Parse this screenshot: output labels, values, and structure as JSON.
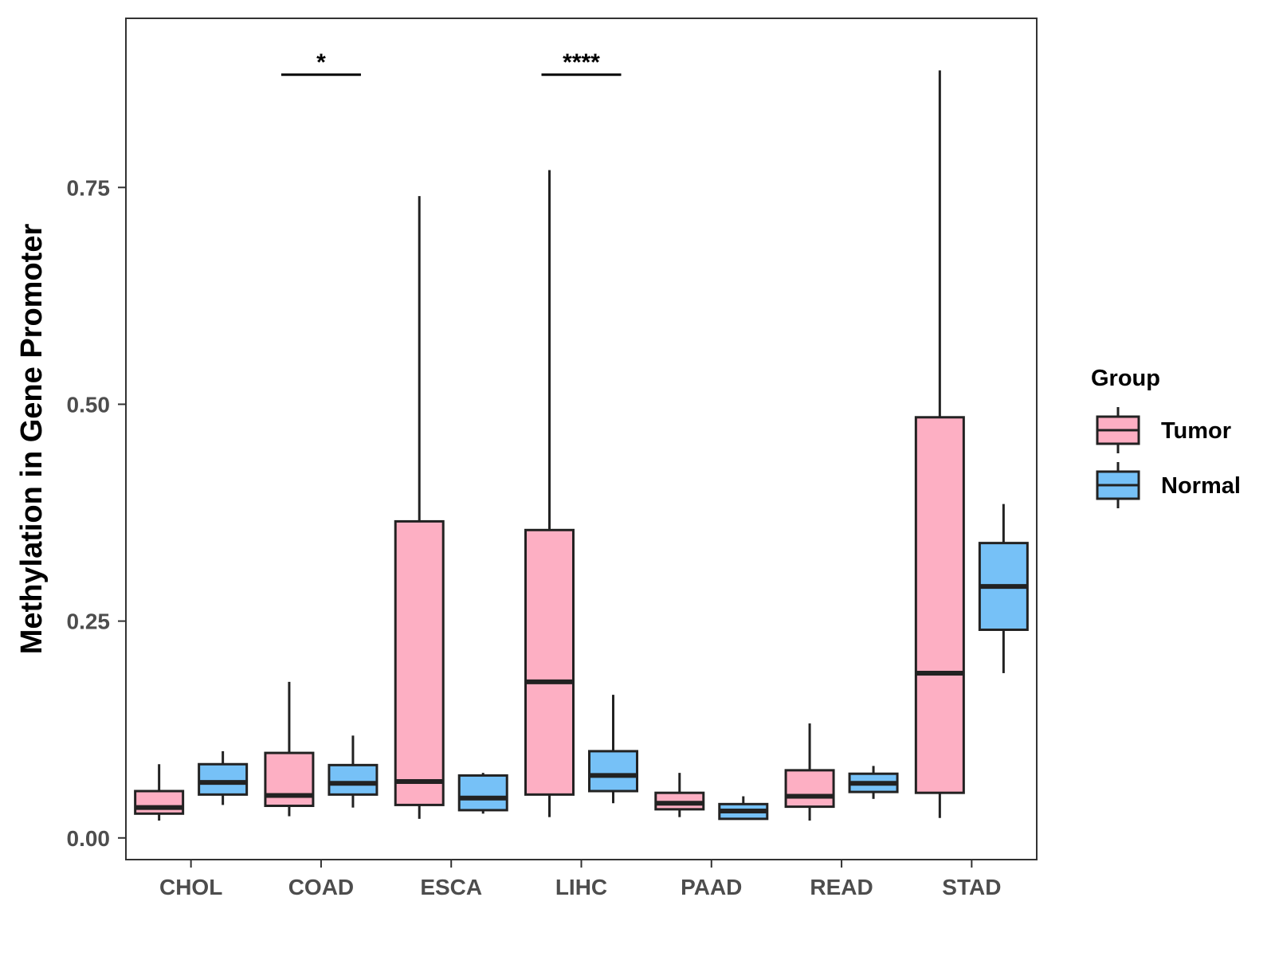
{
  "chart_data": {
    "type": "boxplot",
    "title": "",
    "xlabel": "",
    "ylabel": "Methylation in Gene Promoter",
    "ylim": [
      -0.025,
      0.945
    ],
    "yticks": [
      0.0,
      0.25,
      0.5,
      0.75
    ],
    "ytick_labels": [
      "0.00",
      "0.25",
      "0.50",
      "0.75"
    ],
    "grid": false,
    "legend_position": "right",
    "categories": [
      "CHOL",
      "COAD",
      "ESCA",
      "LIHC",
      "PAAD",
      "READ",
      "STAD"
    ],
    "legend": {
      "title": "Group",
      "items": [
        {
          "name": "Tumor",
          "color": "#FDAFC3"
        },
        {
          "name": "Normal",
          "color": "#76C1F7"
        }
      ]
    },
    "series": [
      {
        "name": "Tumor",
        "color": "#FDAFC3",
        "boxes": [
          {
            "min": 0.02,
            "q1": 0.028,
            "median": 0.035,
            "q3": 0.054,
            "max": 0.085
          },
          {
            "min": 0.025,
            "q1": 0.037,
            "median": 0.049,
            "q3": 0.098,
            "max": 0.18
          },
          {
            "min": 0.022,
            "q1": 0.038,
            "median": 0.065,
            "q3": 0.365,
            "max": 0.74
          },
          {
            "min": 0.024,
            "q1": 0.05,
            "median": 0.18,
            "q3": 0.355,
            "max": 0.77
          },
          {
            "min": 0.024,
            "q1": 0.033,
            "median": 0.04,
            "q3": 0.052,
            "max": 0.075
          },
          {
            "min": 0.02,
            "q1": 0.036,
            "median": 0.048,
            "q3": 0.078,
            "max": 0.132
          },
          {
            "min": 0.023,
            "q1": 0.052,
            "median": 0.19,
            "q3": 0.485,
            "max": 0.885
          }
        ]
      },
      {
        "name": "Normal",
        "color": "#76C1F7",
        "boxes": [
          {
            "min": 0.038,
            "q1": 0.05,
            "median": 0.064,
            "q3": 0.085,
            "max": 0.1
          },
          {
            "min": 0.035,
            "q1": 0.05,
            "median": 0.063,
            "q3": 0.084,
            "max": 0.118
          },
          {
            "min": 0.028,
            "q1": 0.032,
            "median": 0.046,
            "q3": 0.072,
            "max": 0.075
          },
          {
            "min": 0.04,
            "q1": 0.054,
            "median": 0.072,
            "q3": 0.1,
            "max": 0.165
          },
          {
            "min": 0.022,
            "q1": 0.022,
            "median": 0.031,
            "q3": 0.039,
            "max": 0.048
          },
          {
            "min": 0.045,
            "q1": 0.053,
            "median": 0.063,
            "q3": 0.074,
            "max": 0.083
          },
          {
            "min": 0.19,
            "q1": 0.24,
            "median": 0.29,
            "q3": 0.34,
            "max": 0.385
          }
        ]
      }
    ],
    "annotations": [
      {
        "category": "COAD",
        "label": "*",
        "y": 0.88
      },
      {
        "category": "LIHC",
        "label": "****",
        "y": 0.88
      }
    ]
  }
}
